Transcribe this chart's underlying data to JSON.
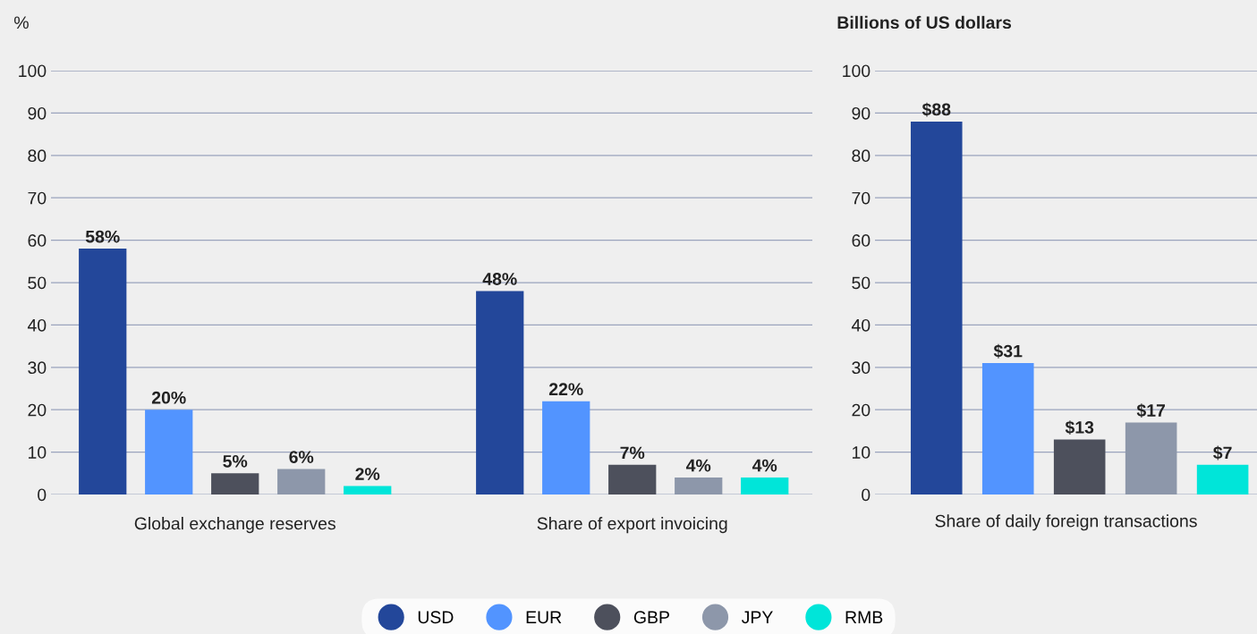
{
  "chart_data": [
    {
      "type": "bar",
      "ylabel": "%",
      "categories": [
        "Global exchange reserves",
        "Share of export invoicing"
      ],
      "ylim": [
        0,
        100
      ],
      "yticks": [
        0,
        10,
        20,
        30,
        40,
        50,
        60,
        70,
        80,
        90,
        100
      ],
      "grid": "y",
      "legend": "bottom",
      "series": [
        {
          "name": "USD",
          "color": "#23479a",
          "values": [
            58,
            48
          ],
          "value_labels": [
            "58%",
            "48%"
          ]
        },
        {
          "name": "EUR",
          "color": "#5294ff",
          "values": [
            20,
            22
          ],
          "value_labels": [
            "20%",
            "22%"
          ]
        },
        {
          "name": "GBP",
          "color": "#4d505c",
          "values": [
            5,
            7
          ],
          "value_labels": [
            "5%",
            "7%"
          ]
        },
        {
          "name": "JPY",
          "color": "#8d97aa",
          "values": [
            6,
            4
          ],
          "value_labels": [
            "6%",
            "4%"
          ]
        },
        {
          "name": "RMB",
          "color": "#00e5d9",
          "values": [
            2,
            4
          ],
          "value_labels": [
            "2%",
            "4%"
          ]
        }
      ]
    },
    {
      "type": "bar",
      "ylabel": "Billions of US dollars",
      "xlabel": "Share of daily foreign transactions",
      "categories": [
        null,
        null,
        null,
        null,
        null
      ],
      "ylim": [
        0,
        100
      ],
      "yticks": [
        0,
        10,
        20,
        30,
        40,
        50,
        60,
        70,
        80,
        90,
        100
      ],
      "grid": "y",
      "values": [
        88,
        31,
        13,
        17,
        7
      ],
      "colors": [
        "#23479a",
        "#5294ff",
        "#4d505c",
        "#8d97aa",
        "#00e5d9"
      ],
      "value_labels": [
        "$88",
        "$31",
        "$13",
        "$17",
        "$7"
      ]
    }
  ]
}
